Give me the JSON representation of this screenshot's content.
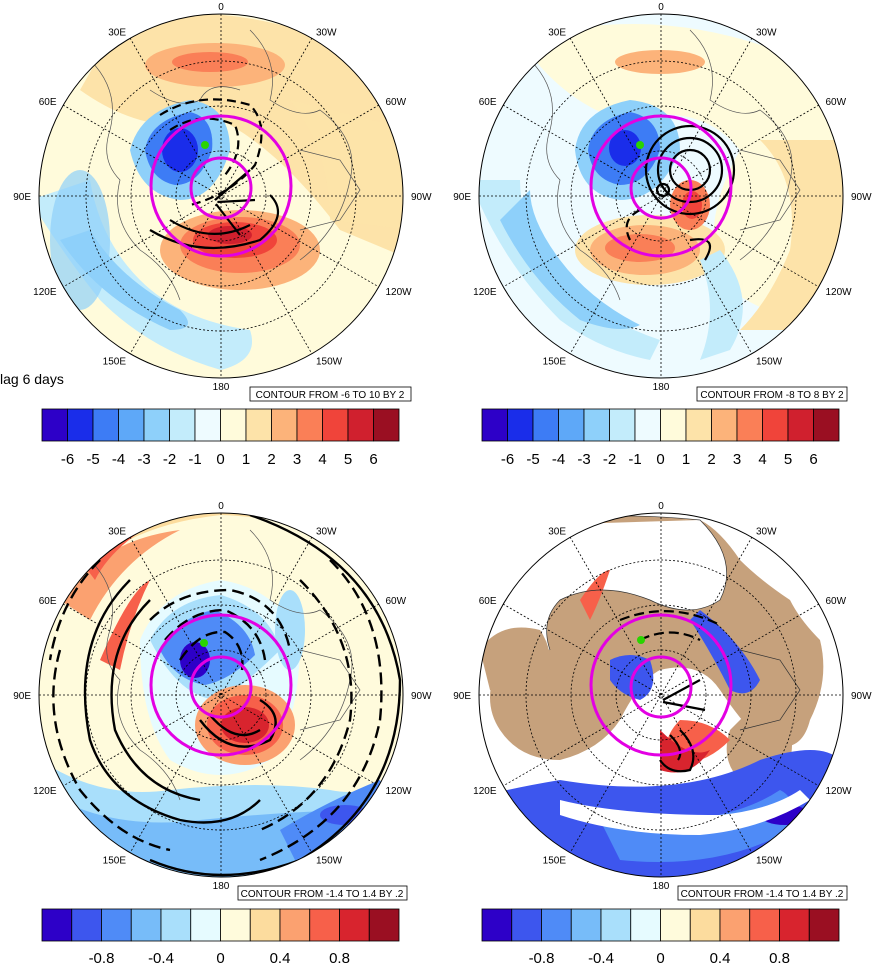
{
  "figure": {
    "lag_label": "lag 6 days",
    "lon_labels": [
      "0",
      "30W",
      "60W",
      "90W",
      "120W",
      "150W",
      "180",
      "150E",
      "120E",
      "90E",
      "60E",
      "30E"
    ]
  },
  "colors": {
    "magenta": "#e300e3",
    "land": "#c6a17c",
    "scale12": [
      "#2d00c8",
      "#1a2dea",
      "#3d7cf5",
      "#5ea8f8",
      "#8ed0fa",
      "#c3ecfb",
      "#eefbff",
      "#fffbdb",
      "#fde3a9",
      "#fcb37a",
      "#fa7f57",
      "#f0443a",
      "#d0202e",
      "#9a0f22"
    ],
    "scale11": [
      "#2d00c8",
      "#3d56ee",
      "#4f8bf7",
      "#77bcf9",
      "#a9dffb",
      "#e6fbff",
      "#fffbdc",
      "#fcdc9e",
      "#fba170",
      "#f7604a",
      "#d8242e",
      "#9a0f22"
    ]
  },
  "panels": [
    {
      "id": "top-left",
      "contour_box": "CONTOUR FROM -6 TO 10 BY 2",
      "colorbar_ticks": [
        "-6",
        "-5",
        "-4",
        "-3",
        "-2",
        "-1",
        "0",
        "1",
        "2",
        "3",
        "4",
        "5",
        "6"
      ]
    },
    {
      "id": "top-right",
      "contour_box": "CONTOUR FROM -8 TO 8 BY 2",
      "colorbar_ticks": [
        "-6",
        "-5",
        "-4",
        "-3",
        "-2",
        "-1",
        "0",
        "1",
        "2",
        "3",
        "4",
        "5",
        "6"
      ]
    },
    {
      "id": "bottom-left",
      "contour_box": "CONTOUR FROM -1.4 TO 1.4 BY .2",
      "colorbar_ticks": [
        "-0.8",
        "-0.4",
        "0",
        "0.4",
        "0.8"
      ]
    },
    {
      "id": "bottom-right",
      "contour_box": "CONTOUR FROM -1.4 TO 1.4 BY .2",
      "colorbar_ticks": [
        "-0.8",
        "-0.4",
        "0",
        "0.4",
        "0.8"
      ]
    }
  ]
}
